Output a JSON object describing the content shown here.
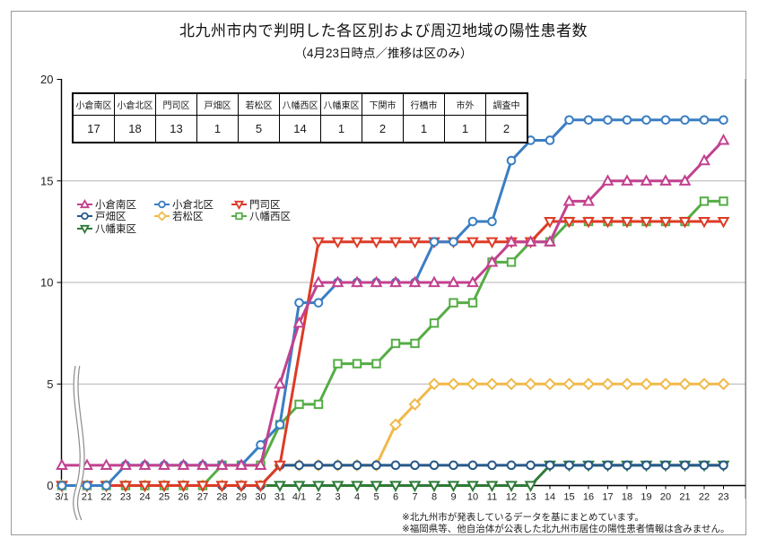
{
  "title": "北九州市内で判明した各区別および周辺地域の陽性患者数",
  "subtitle": "（4月23日時点／推移は区のみ）",
  "summary_table": {
    "headers": [
      "小倉南区",
      "小倉北区",
      "門司区",
      "戸畑区",
      "若松区",
      "八幡西区",
      "八幡東区",
      "下関市",
      "行橋市",
      "市外",
      "調査中"
    ],
    "values": [
      "17",
      "18",
      "13",
      "1",
      "5",
      "14",
      "1",
      "2",
      "1",
      "1",
      "2"
    ]
  },
  "footnotes": [
    "※北九州市が発表しているデータを基にまとめています。",
    "※福岡県等、他自治体が公表した北九州市居住の陽性患者情報は含みません。"
  ],
  "chart_data": {
    "type": "line",
    "title": "北九州市内で判明した各区別および周辺地域の陽性患者数",
    "xlabel": "",
    "ylabel": "",
    "ylim": [
      0,
      20
    ],
    "y_ticks": [
      0,
      5,
      10,
      15,
      20
    ],
    "grid": true,
    "legend_position": "upper-left-inside",
    "x_axis_break_after_first_point": true,
    "categories": [
      "3/1",
      "21",
      "22",
      "23",
      "24",
      "25",
      "26",
      "27",
      "28",
      "29",
      "30",
      "31",
      "4/1",
      "2",
      "3",
      "4",
      "5",
      "6",
      "7",
      "8",
      "9",
      "10",
      "11",
      "12",
      "13",
      "14",
      "15",
      "16",
      "17",
      "18",
      "19",
      "20",
      "21",
      "22",
      "23"
    ],
    "series": [
      {
        "name": "小倉南区",
        "color": "#c2418f",
        "marker": "triangle-up",
        "values": [
          1,
          1,
          1,
          1,
          1,
          1,
          1,
          1,
          1,
          1,
          1,
          5,
          8,
          10,
          10,
          10,
          10,
          10,
          10,
          10,
          10,
          10,
          11,
          12,
          12,
          12,
          14,
          14,
          15,
          15,
          15,
          15,
          15,
          16,
          17
        ]
      },
      {
        "name": "小倉北区",
        "color": "#3a7ec2",
        "marker": "circle",
        "values": [
          0,
          0,
          0,
          1,
          1,
          1,
          1,
          1,
          1,
          1,
          2,
          3,
          9,
          9,
          10,
          10,
          10,
          10,
          10,
          12,
          12,
          13,
          13,
          16,
          17,
          17,
          18,
          18,
          18,
          18,
          18,
          18,
          18,
          18,
          18
        ]
      },
      {
        "name": "門司区",
        "color": "#dd3b26",
        "marker": "triangle-down",
        "values": [
          0,
          0,
          0,
          0,
          0,
          0,
          0,
          0,
          0,
          0,
          0,
          1,
          null,
          12,
          12,
          12,
          12,
          12,
          12,
          12,
          12,
          12,
          12,
          12,
          12,
          13,
          13,
          13,
          13,
          13,
          13,
          13,
          13,
          13,
          13
        ]
      },
      {
        "name": "戸畑区",
        "color": "#27598a",
        "marker": "circle",
        "values": [
          0,
          0,
          0,
          0,
          0,
          0,
          0,
          0,
          0,
          0,
          0,
          1,
          1,
          1,
          1,
          1,
          1,
          1,
          1,
          1,
          1,
          1,
          1,
          1,
          1,
          1,
          1,
          1,
          1,
          1,
          1,
          1,
          1,
          1,
          1
        ]
      },
      {
        "name": "若松区",
        "color": "#f0b94a",
        "marker": "diamond",
        "values": [
          0,
          0,
          0,
          0,
          0,
          0,
          0,
          0,
          0,
          0,
          0,
          1,
          1,
          1,
          1,
          1,
          1,
          3,
          4,
          5,
          5,
          5,
          5,
          5,
          5,
          5,
          5,
          5,
          5,
          5,
          5,
          5,
          5,
          5,
          5
        ]
      },
      {
        "name": "八幡西区",
        "color": "#55ad45",
        "marker": "square",
        "values": [
          0,
          0,
          0,
          0,
          0,
          0,
          0,
          0,
          1,
          1,
          1,
          3,
          4,
          4,
          6,
          6,
          6,
          7,
          7,
          8,
          9,
          9,
          11,
          11,
          12,
          12,
          13,
          13,
          13,
          13,
          13,
          13,
          13,
          14,
          14
        ]
      },
      {
        "name": "八幡東区",
        "color": "#2f7a38",
        "marker": "triangle-down",
        "values": [
          0,
          0,
          0,
          0,
          0,
          0,
          0,
          0,
          0,
          0,
          0,
          0,
          0,
          0,
          0,
          0,
          0,
          0,
          0,
          0,
          0,
          0,
          0,
          0,
          0,
          1,
          1,
          1,
          1,
          1,
          1,
          1,
          1,
          1,
          1
        ]
      }
    ],
    "draw_order": [
      6,
      4,
      3,
      5,
      2,
      1,
      0
    ]
  }
}
